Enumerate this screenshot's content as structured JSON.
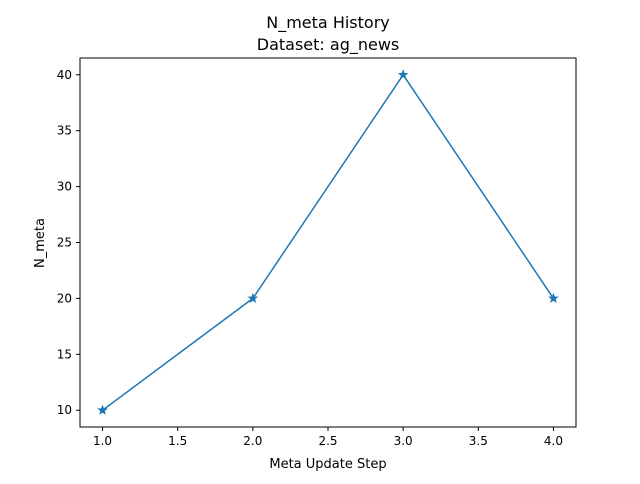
{
  "chart_data": {
    "type": "line",
    "title": "N_meta History",
    "subtitle": "Dataset: ag_news",
    "xlabel": "Meta Update Step",
    "ylabel": "N_meta",
    "x": [
      1.0,
      2.0,
      3.0,
      4.0
    ],
    "series": [
      {
        "values": [
          10,
          20,
          40,
          20
        ],
        "color": "#1f77b4",
        "marker": "star"
      }
    ],
    "xlim": [
      0.85,
      4.15
    ],
    "ylim": [
      8.5,
      41.5
    ],
    "xticks": [
      1.0,
      1.5,
      2.0,
      2.5,
      3.0,
      3.5,
      4.0
    ],
    "xtick_labels": [
      "1.0",
      "1.5",
      "2.0",
      "2.5",
      "3.0",
      "3.5",
      "4.0"
    ],
    "yticks": [
      10,
      15,
      20,
      25,
      30,
      35,
      40
    ],
    "ytick_labels": [
      "10",
      "15",
      "20",
      "25",
      "30",
      "35",
      "40"
    ],
    "grid": false,
    "legend": "none"
  }
}
